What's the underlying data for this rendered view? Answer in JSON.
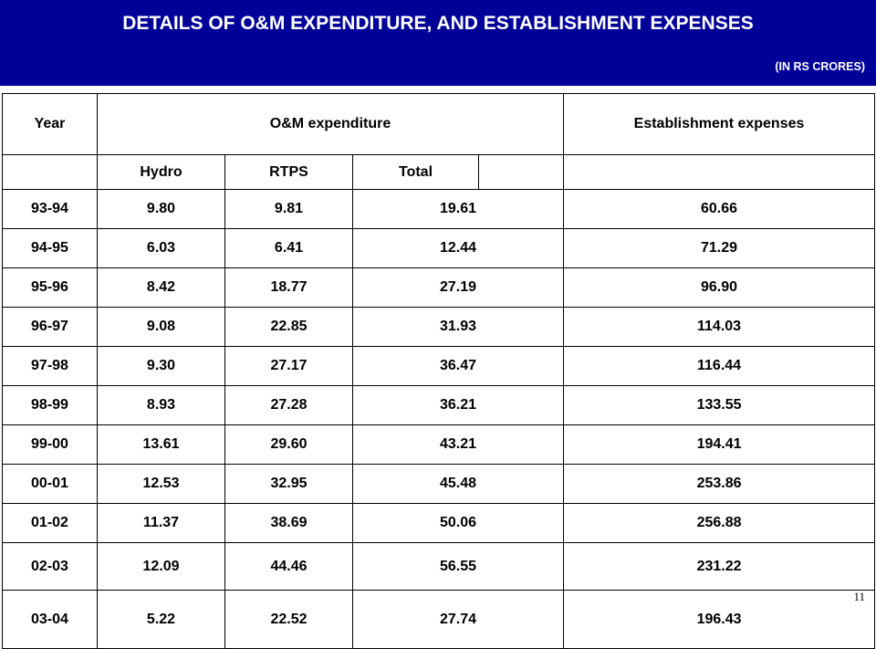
{
  "header": {
    "title": "DETAILS OF O&M EXPENDITURE, AND ESTABLISHMENT EXPENSES",
    "unit": "(IN RS CRORES)"
  },
  "table": {
    "col_year": "Year",
    "col_om": "O&M expenditure",
    "col_est": "Establishment expenses",
    "sub_hydro": "Hydro",
    "sub_rtps": "RTPS",
    "sub_total": "Total",
    "rows": [
      [
        "93-94",
        "9.80",
        "9.81",
        "19.61",
        "60.66"
      ],
      [
        "94-95",
        "6.03",
        "6.41",
        "12.44",
        "71.29"
      ],
      [
        "95-96",
        "8.42",
        "18.77",
        "27.19",
        "96.90"
      ],
      [
        "96-97",
        "9.08",
        "22.85",
        "31.93",
        "114.03"
      ],
      [
        "97-98",
        "9.30",
        "27.17",
        "36.47",
        "116.44"
      ],
      [
        "98-99",
        "8.93",
        "27.28",
        "36.21",
        "133.55"
      ],
      [
        "99-00",
        "13.61",
        "29.60",
        "43.21",
        "194.41"
      ],
      [
        "00-01",
        "12.53",
        "32.95",
        "45.48",
        "253.86"
      ],
      [
        "01-02",
        "11.37",
        "38.69",
        "50.06",
        "256.88"
      ],
      [
        "02-03",
        "12.09",
        "44.46",
        "56.55",
        "231.22"
      ],
      [
        "03-04",
        "5.22",
        "22.52",
        "27.74",
        "196.43"
      ]
    ]
  },
  "slide_number": "11"
}
